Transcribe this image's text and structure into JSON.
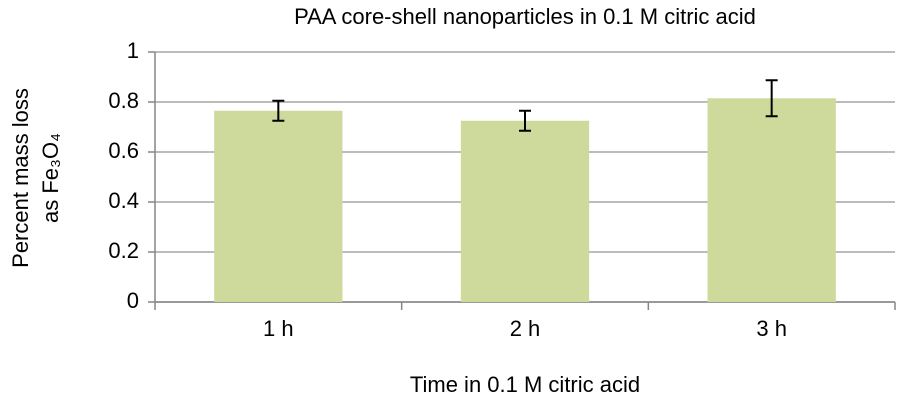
{
  "chart_data": {
    "type": "bar",
    "title": "PAA core-shell nanoparticles in 0.1 M citric acid",
    "x_label": "Time in 0.1 M citric acid",
    "y_label": [
      "Percent mass loss",
      "as Fe₃O₄"
    ],
    "categories": [
      "1 h",
      "2 h",
      "3 h"
    ],
    "values": [
      0.765,
      0.725,
      0.815
    ],
    "errors": [
      0.04,
      0.04,
      0.072
    ],
    "color": "#cdda9b",
    "error_color": "#000000",
    "ylim": [
      0,
      1
    ],
    "yticks": [
      0,
      0.2,
      0.4,
      0.6,
      0.8,
      1
    ],
    "grid": true
  }
}
